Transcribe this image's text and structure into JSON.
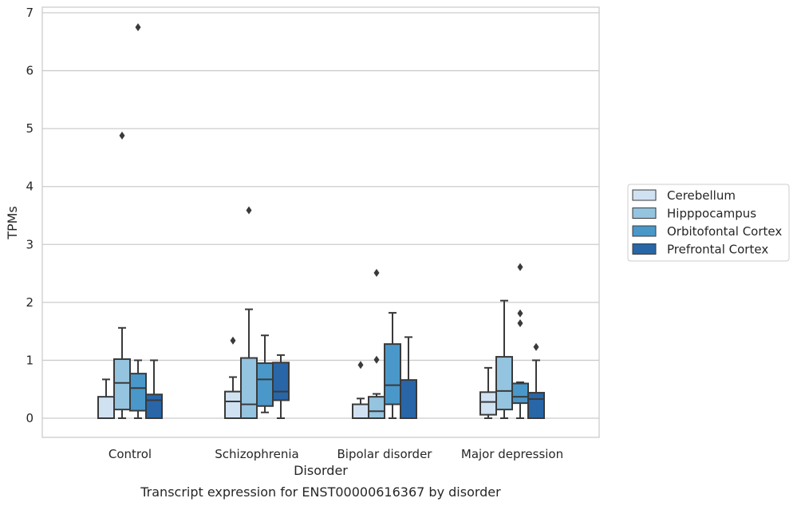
{
  "chart_data": {
    "type": "box",
    "xlabel": "Disorder",
    "ylabel": "TPMs",
    "caption": "Transcript expression for ENST00000616367 by disorder",
    "ylim": [
      -0.33,
      7.1
    ],
    "yticks": [
      0,
      1,
      2,
      3,
      4,
      5,
      6,
      7
    ],
    "grid": "horizontal",
    "legend_placement": "right",
    "categories": [
      "Control",
      "Schizophrenia",
      "Bipolar disorder",
      "Major depression"
    ],
    "series": [
      {
        "name": "Cerebellum",
        "color": "#d0e1f2",
        "boxes": [
          {
            "whisker_low": 0,
            "q1": 0,
            "median": 0,
            "q3": 0.37,
            "whisker_high": 0.67,
            "outliers": []
          },
          {
            "whisker_low": 0,
            "q1": 0,
            "median": 0.29,
            "q3": 0.46,
            "whisker_high": 0.71,
            "outliers": [
              1.34
            ]
          },
          {
            "whisker_low": 0,
            "q1": 0,
            "median": 0,
            "q3": 0.24,
            "whisker_high": 0.34,
            "outliers": [
              0.92
            ]
          },
          {
            "whisker_low": 0,
            "q1": 0.06,
            "median": 0.28,
            "q3": 0.45,
            "whisker_high": 0.87,
            "outliers": []
          }
        ]
      },
      {
        "name": "Hipppocampus",
        "color": "#94c4df",
        "boxes": [
          {
            "whisker_low": 0,
            "q1": 0.15,
            "median": 0.61,
            "q3": 1.02,
            "whisker_high": 1.56,
            "outliers": [
              4.88
            ]
          },
          {
            "whisker_low": 0,
            "q1": 0,
            "median": 0.24,
            "q3": 1.04,
            "whisker_high": 1.88,
            "outliers": [
              3.59
            ]
          },
          {
            "whisker_low": 0,
            "q1": 0,
            "median": 0.12,
            "q3": 0.37,
            "whisker_high": 0.42,
            "outliers": [
              1.01,
              2.51
            ]
          },
          {
            "whisker_low": 0,
            "q1": 0.15,
            "median": 0.47,
            "q3": 1.06,
            "whisker_high": 2.03,
            "outliers": []
          }
        ]
      },
      {
        "name": "Orbitofontal Cortex",
        "color": "#4a98c9",
        "boxes": [
          {
            "whisker_low": 0,
            "q1": 0.13,
            "median": 0.52,
            "q3": 0.77,
            "whisker_high": 1.0,
            "outliers": [
              6.75
            ]
          },
          {
            "whisker_low": 0.1,
            "q1": 0.21,
            "median": 0.67,
            "q3": 0.95,
            "whisker_high": 1.43,
            "outliers": []
          },
          {
            "whisker_low": 0,
            "q1": 0.24,
            "median": 0.57,
            "q3": 1.28,
            "whisker_high": 1.82,
            "outliers": []
          },
          {
            "whisker_low": 0,
            "q1": 0.26,
            "median": 0.37,
            "q3": 0.6,
            "whisker_high": 0.62,
            "outliers": [
              1.64,
              1.81,
              2.61
            ]
          }
        ]
      },
      {
        "name": "Prefrontal Cortex",
        "color": "#2866a8",
        "boxes": [
          {
            "whisker_low": 0,
            "q1": 0,
            "median": 0.31,
            "q3": 0.41,
            "whisker_high": 1.0,
            "outliers": []
          },
          {
            "whisker_low": 0,
            "q1": 0.31,
            "median": 0.46,
            "q3": 0.96,
            "whisker_high": 1.09,
            "outliers": []
          },
          {
            "whisker_low": 0,
            "q1": 0,
            "median": 0,
            "q3": 0.66,
            "whisker_high": 1.4,
            "outliers": []
          },
          {
            "whisker_low": 0,
            "q1": 0,
            "median": 0.33,
            "q3": 0.44,
            "whisker_high": 1.0,
            "outliers": [
              1.23
            ]
          }
        ]
      }
    ]
  }
}
